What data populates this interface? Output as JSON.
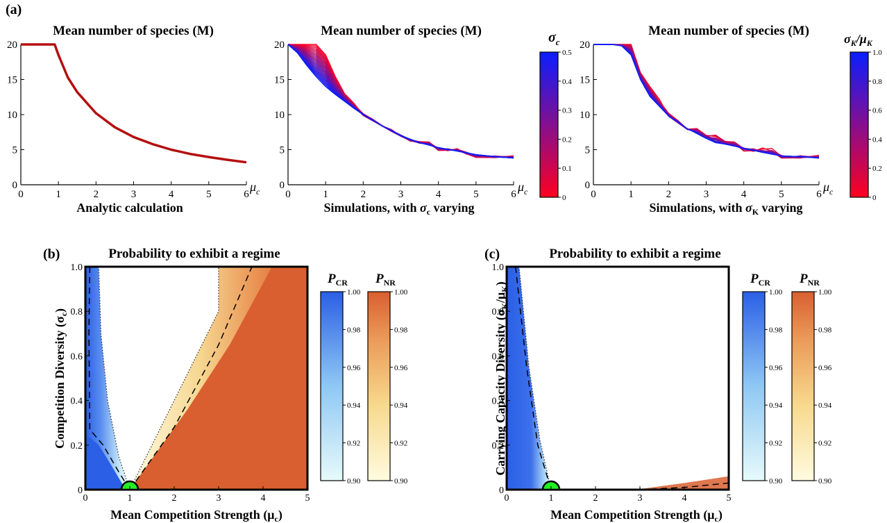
{
  "panel_labels": {
    "a": "(a)",
    "b": "(b)",
    "c": "(c)"
  },
  "panels": {
    "a1": {
      "title": "Mean number of species (M)",
      "xlabel": "Analytic calculation",
      "xvar": "μ",
      "xvar_sub": "c"
    },
    "a2": {
      "title": "Mean number of species (M)",
      "xlabel_pre": "Simulations, with ",
      "xlabel_sym": "σ",
      "xlabel_sub": "c",
      "xlabel_post": " varying",
      "xvar": "μ",
      "xvar_sub": "c",
      "colorbar": {
        "label": "σ",
        "label_sub": "c",
        "ticks": [
          "0.5",
          "0.4",
          "0.3",
          "0.2",
          "0.1",
          "0"
        ]
      }
    },
    "a3": {
      "title": "Mean number of species (M)",
      "xlabel_pre": "Simulations, with ",
      "xlabel_sym": "σ",
      "xlabel_sub": "K",
      "xlabel_post": " varying",
      "xvar": "μ",
      "xvar_sub": "c",
      "colorbar": {
        "label": "σ",
        "label_sub": "K",
        "label_mid": "/μ",
        "label_sub2": "K",
        "ticks": [
          "1.0",
          "0.8",
          "0.6",
          "0.4",
          "0.2",
          "0"
        ]
      }
    },
    "b": {
      "title": "Probability to exhibit a regime",
      "xlabel": "Mean Competition Strength (μ",
      "xlabel_sub": "c",
      "xlabel_end": ")",
      "ylabel": "Competition Diversity (σ",
      "ylabel_sub": "c",
      "ylabel_end": ")"
    },
    "c": {
      "title": "Probability to exhibit a regime",
      "xlabel": "Mean Competition Strength (μ",
      "xlabel_sub": "c",
      "xlabel_end": ")",
      "ylabel": "Carrying Capacity Diversity (σ",
      "ylabel_sub": "K",
      "ylabel_mid": "/μ",
      "ylabel_sub2": "K",
      "ylabel_end": ")"
    }
  },
  "prob_colorbars": {
    "cr": {
      "label": "P",
      "label_sub": "CR",
      "ticks": [
        "1.00",
        "0.98",
        "0.96",
        "0.94",
        "0.92",
        "0.90"
      ],
      "top_color": "#2b5fe6",
      "bottom_color": "#e6fafa"
    },
    "nr": {
      "label": "P",
      "label_sub": "NR",
      "ticks": [
        "1.00",
        "0.98",
        "0.96",
        "0.94",
        "0.92",
        "0.90"
      ],
      "top_color": "#d95f30",
      "bottom_color": "#fffbe0"
    }
  },
  "colors": {
    "analytic": "#b40f0f",
    "sim_low": "#ff0020",
    "sim_high": "#0a1eff",
    "cr_fill": "#2b5fe6",
    "nr_fill": "#d95f30",
    "critical_point": "#22ee22"
  },
  "chart_data": [
    {
      "type": "line",
      "id": "a1",
      "title": "Mean number of species (M)",
      "xlabel": "Analytic calculation",
      "xlim": [
        0,
        6
      ],
      "ylim": [
        0,
        20
      ],
      "xticks": [
        0,
        1,
        2,
        3,
        4,
        5,
        6
      ],
      "yticks": [
        0,
        5,
        10,
        15,
        20
      ],
      "series": [
        {
          "x": [
            0,
            0.5,
            0.9,
            1.0,
            1.25,
            1.5,
            2.0,
            2.5,
            3.0,
            3.5,
            4.0,
            4.5,
            5.0,
            5.5,
            6.0
          ],
          "y": [
            20,
            20,
            20,
            18.5,
            15.3,
            13.2,
            10.2,
            8.2,
            6.8,
            5.8,
            5.0,
            4.4,
            3.95,
            3.55,
            3.2
          ]
        }
      ]
    },
    {
      "type": "line",
      "id": "a2",
      "title": "Mean number of species (M)",
      "xlabel": "Simulations, with σc varying",
      "xlim": [
        0,
        6
      ],
      "ylim": [
        0,
        20
      ],
      "xticks": [
        0,
        1,
        2,
        3,
        4,
        5,
        6
      ],
      "yticks": [
        0,
        5,
        10,
        15,
        20
      ],
      "parameter_range": [
        0,
        0.5
      ],
      "series": [
        {
          "param": 0,
          "x": [
            0,
            0.25,
            0.5,
            0.75,
            1.0,
            1.25,
            1.5,
            1.75,
            2.0,
            2.5,
            3.0,
            3.25,
            3.5,
            3.75,
            4.0,
            4.5,
            5.0,
            5.5,
            6.0
          ],
          "y": [
            20,
            20,
            20,
            20,
            18.5,
            15.5,
            13.0,
            11.5,
            10,
            8.5,
            7,
            6.3,
            6,
            6,
            5,
            5,
            4,
            4,
            4
          ]
        },
        {
          "param": 0.5,
          "x": [
            0,
            0.25,
            0.5,
            0.75,
            1.0,
            1.25,
            1.5,
            1.75,
            2.0,
            2.5,
            3.0,
            3.5,
            4.0,
            4.5,
            5.0,
            5.5,
            6.0
          ],
          "y": [
            20,
            18.8,
            17.0,
            15.4,
            14.0,
            12.9,
            11.9,
            10.9,
            10.0,
            8.4,
            7.0,
            6.0,
            5.3,
            4.8,
            4.3,
            4.0,
            3.8
          ]
        }
      ]
    },
    {
      "type": "line",
      "id": "a3",
      "title": "Mean number of species (M)",
      "xlabel": "Simulations, with σK varying",
      "xlim": [
        0,
        6
      ],
      "ylim": [
        0,
        20
      ],
      "xticks": [
        0,
        1,
        2,
        3,
        4,
        5,
        6
      ],
      "yticks": [
        0,
        5,
        10,
        15,
        20
      ],
      "parameter_range": [
        0,
        1.0
      ],
      "series": [
        {
          "param": 0,
          "x": [
            0,
            0.5,
            0.75,
            1.0,
            1.25,
            1.5,
            2.0,
            2.5,
            2.75,
            3.0,
            3.25,
            3.5,
            3.75,
            4.0,
            4.5,
            4.75,
            5.0,
            5.5,
            6.0
          ],
          "y": [
            20,
            20,
            20,
            20,
            16,
            14,
            10,
            8,
            8,
            7,
            7,
            6,
            6,
            5,
            5,
            5,
            4,
            4,
            4
          ]
        },
        {
          "param": 1.0,
          "x": [
            0,
            0.5,
            0.75,
            1.0,
            1.25,
            1.5,
            2.0,
            2.5,
            3.0,
            3.25,
            3.5,
            4.0,
            4.5,
            5.0,
            5.5,
            6.0
          ],
          "y": [
            20,
            20,
            19.8,
            18.5,
            15.0,
            12.6,
            9.8,
            8.0,
            6.6,
            6.0,
            5.8,
            5.2,
            4.6,
            4.1,
            4.0,
            3.8
          ]
        }
      ]
    },
    {
      "type": "heatmap",
      "id": "b",
      "title": "Probability to exhibit a regime",
      "xlabel": "Mean Competition Strength (μc)",
      "ylabel": "Competition Diversity (σc)",
      "xlim": [
        0,
        5
      ],
      "ylim": [
        0,
        1.0
      ],
      "xticks": [
        0,
        1,
        2,
        3,
        4,
        5
      ],
      "yticks": [
        0,
        0.2,
        0.4,
        0.6,
        0.8,
        1.0
      ],
      "critical_point": [
        1,
        0
      ],
      "cr_boundary_dotted": [
        [
          0.3,
          1.0
        ],
        [
          0.35,
          0.7
        ],
        [
          0.5,
          0.4
        ],
        [
          0.75,
          0.15
        ],
        [
          1.0,
          0
        ]
      ],
      "cr_boundary_dashed": [
        [
          0.1,
          1.0
        ],
        [
          0.08,
          0.7
        ],
        [
          0.1,
          0.27
        ],
        [
          0.4,
          0.2
        ],
        [
          0.75,
          0.08
        ],
        [
          1.0,
          0
        ]
      ],
      "nr_boundary_dotted": [
        [
          1.0,
          0
        ],
        [
          2.0,
          0.4
        ],
        [
          3.0,
          0.8
        ],
        [
          3.0,
          1.0
        ]
      ],
      "nr_boundary_dashed": [
        [
          1.0,
          0
        ],
        [
          2.0,
          0.28
        ],
        [
          3.0,
          0.65
        ],
        [
          3.75,
          1.0
        ]
      ]
    },
    {
      "type": "heatmap",
      "id": "c",
      "title": "Probability to exhibit a regime",
      "xlabel": "Mean Competition Strength (μc)",
      "ylabel": "Carrying Capacity Diversity (σK/μK)",
      "xlim": [
        0,
        5
      ],
      "ylim": [
        0,
        1.0
      ],
      "xticks": [
        0,
        1,
        2,
        3,
        4,
        5
      ],
      "yticks": [
        0,
        0.2,
        0.4,
        0.6,
        0.8,
        1.0
      ],
      "critical_point": [
        1,
        0
      ],
      "cr_boundary_dotted": [
        [
          0.28,
          1.0
        ],
        [
          0.5,
          0.55
        ],
        [
          0.75,
          0.22
        ],
        [
          1.0,
          0
        ]
      ],
      "cr_boundary_dashed": [
        [
          0.2,
          1.0
        ],
        [
          0.45,
          0.55
        ],
        [
          0.7,
          0.2
        ],
        [
          1.0,
          0
        ]
      ],
      "nr_boundary_dashed": [
        [
          3.0,
          0
        ],
        [
          4.0,
          0.01
        ],
        [
          5.0,
          0.03
        ]
      ]
    }
  ]
}
